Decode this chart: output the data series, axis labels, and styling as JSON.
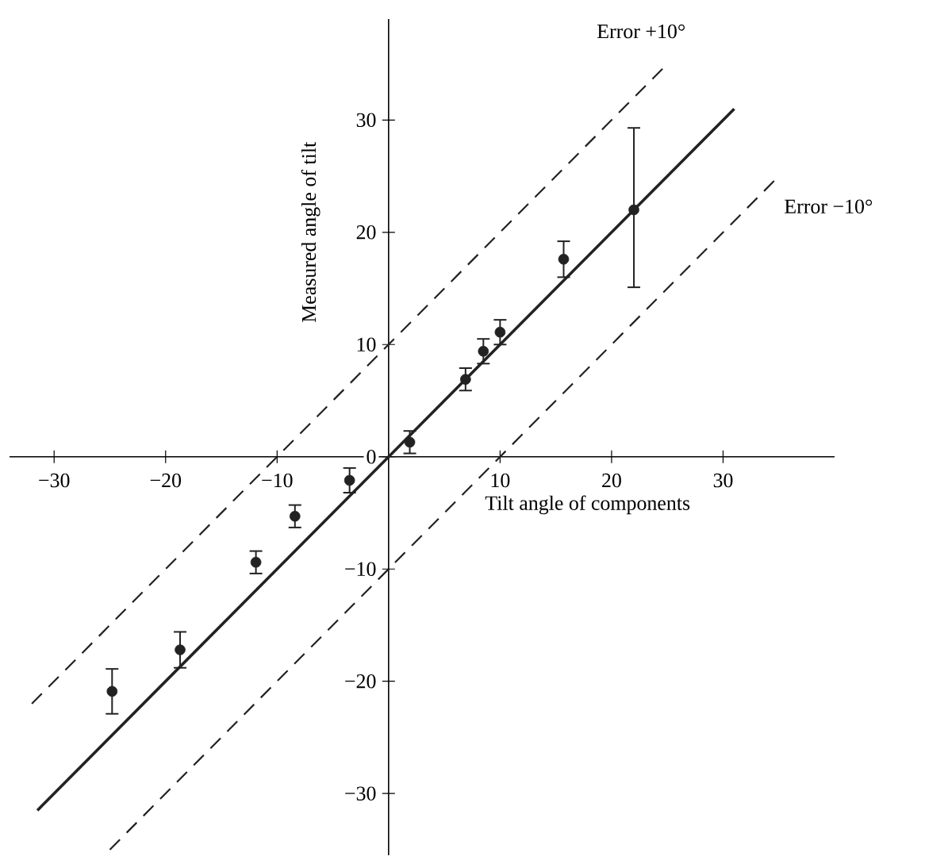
{
  "chart_data": {
    "type": "scatter",
    "xlabel": "Tilt angle of components",
    "ylabel": "Measured angle of tilt",
    "xlim": [
      -34,
      40
    ],
    "ylim": [
      -35.5,
      39
    ],
    "xticks": [
      {
        "value": -30,
        "label": "−30"
      },
      {
        "value": -20,
        "label": "−20"
      },
      {
        "value": -10,
        "label": "−10"
      },
      10,
      20,
      30
    ],
    "yticks": [
      {
        "value": -30,
        "label": "−30"
      },
      {
        "value": -20,
        "label": "−20"
      },
      {
        "value": -10,
        "label": "−10"
      },
      0,
      10,
      20,
      30
    ],
    "grid": false,
    "series": [
      {
        "color": "#222222",
        "marker": "circle",
        "x": [
          -24.8,
          -18.7,
          -11.9,
          -8.4,
          -3.5,
          1.9,
          6.9,
          8.5,
          10.0,
          15.7,
          22.0
        ],
        "values": [
          -20.9,
          -17.2,
          -9.4,
          -5.3,
          -2.1,
          1.3,
          6.9,
          9.4,
          11.1,
          17.6,
          22.0
        ],
        "errors": [
          2.0,
          1.6,
          1.0,
          1.0,
          1.1,
          1.0,
          1.0,
          1.1,
          1.1,
          1.6,
          [
            15.1,
            29.3
          ]
        ]
      },
      {
        "type": "line",
        "color": "#222222",
        "marker": "none",
        "line_style": "solid",
        "x": [
          -31.5,
          31
        ],
        "values": [
          -31.5,
          31
        ]
      },
      {
        "type": "line",
        "color": "#222222",
        "marker": "none",
        "line_style": "dashed",
        "x": [
          -32,
          25
        ],
        "values": [
          -22,
          35
        ]
      },
      {
        "type": "line",
        "color": "#222222",
        "marker": "none",
        "line_style": "dashed",
        "x": [
          -25,
          35
        ],
        "values": [
          -35,
          25
        ]
      }
    ],
    "annotations": [
      "Error +10°",
      "Error −10°"
    ]
  }
}
